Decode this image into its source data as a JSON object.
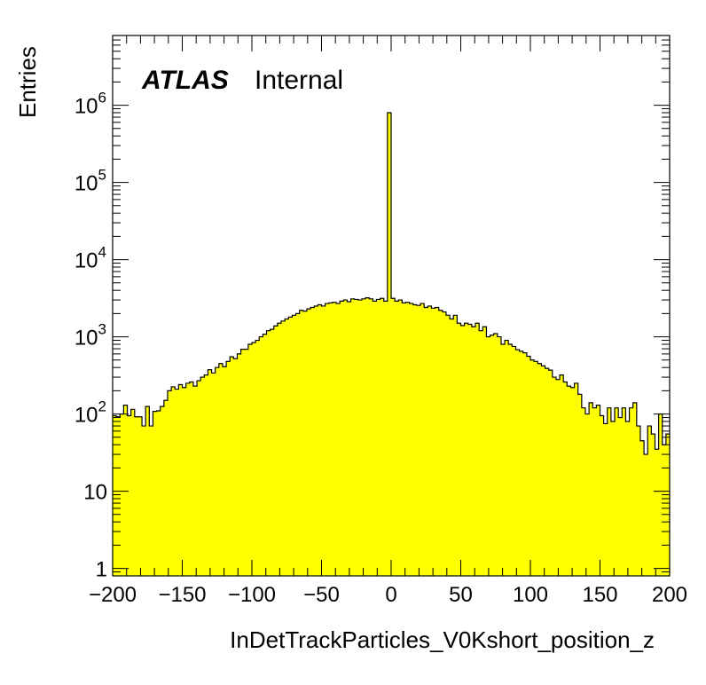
{
  "chart_data": {
    "type": "bar",
    "xlabel": "InDetTrackParticles_V0Kshort_position_z",
    "ylabel": "Entries",
    "x_range": [
      -200,
      200
    ],
    "y_range": [
      0.8,
      8000000
    ],
    "y_scale": "log",
    "bin_width": 3.333,
    "fill_color": "#ffff00",
    "line_color": "#000000",
    "x_ticks": [
      {
        "value": -200,
        "label": "−200"
      },
      {
        "value": -150,
        "label": "−150"
      },
      {
        "value": -100,
        "label": "−100"
      },
      {
        "value": -50,
        "label": "−50"
      },
      {
        "value": 0,
        "label": "0"
      },
      {
        "value": 50,
        "label": "50"
      },
      {
        "value": 100,
        "label": "100"
      },
      {
        "value": 150,
        "label": "150"
      },
      {
        "value": 200,
        "label": "200"
      }
    ],
    "y_ticks": [
      {
        "value": 1,
        "label": "1",
        "sup": ""
      },
      {
        "value": 10,
        "label": "10",
        "sup": ""
      },
      {
        "value": 100,
        "label": "10",
        "sup": "2"
      },
      {
        "value": 1000,
        "label": "10",
        "sup": "3"
      },
      {
        "value": 10000,
        "label": "10",
        "sup": "4"
      },
      {
        "value": 100000,
        "label": "10",
        "sup": "5"
      },
      {
        "value": 1000000,
        "label": "10",
        "sup": "6"
      }
    ],
    "label": {
      "experiment": "ATLAS",
      "status": "Internal"
    },
    "values": [
      95,
      92,
      100,
      130,
      95,
      115,
      92,
      92,
      70,
      125,
      70,
      108,
      110,
      125,
      150,
      200,
      225,
      210,
      240,
      220,
      250,
      260,
      230,
      270,
      300,
      320,
      375,
      340,
      400,
      450,
      410,
      480,
      550,
      520,
      600,
      690,
      690,
      800,
      840,
      900,
      1000,
      1080,
      1200,
      1250,
      1380,
      1500,
      1600,
      1700,
      1800,
      1900,
      2000,
      2200,
      2150,
      2300,
      2400,
      2500,
      2600,
      2500,
      2700,
      2750,
      2800,
      2700,
      2900,
      3000,
      2850,
      3100,
      3050,
      3000,
      3100,
      3200,
      3100,
      2900,
      3050,
      3150,
      2900,
      800000,
      3150,
      2900,
      3000,
      2750,
      2800,
      2700,
      2600,
      2550,
      2700,
      2400,
      2500,
      2350,
      2400,
      2200,
      2100,
      1900,
      1700,
      1900,
      1500,
      1400,
      1500,
      1450,
      1350,
      1500,
      1200,
      1350,
      1000,
      1050,
      1100,
      1000,
      800,
      900,
      800,
      750,
      680,
      650,
      620,
      560,
      500,
      480,
      450,
      420,
      390,
      370,
      300,
      280,
      320,
      260,
      230,
      220,
      250,
      180,
      120,
      100,
      140,
      120,
      130,
      95,
      75,
      120,
      80,
      120,
      90,
      120,
      80,
      120,
      140,
      70,
      45,
      30,
      70,
      55,
      35,
      100,
      40,
      55
    ]
  }
}
